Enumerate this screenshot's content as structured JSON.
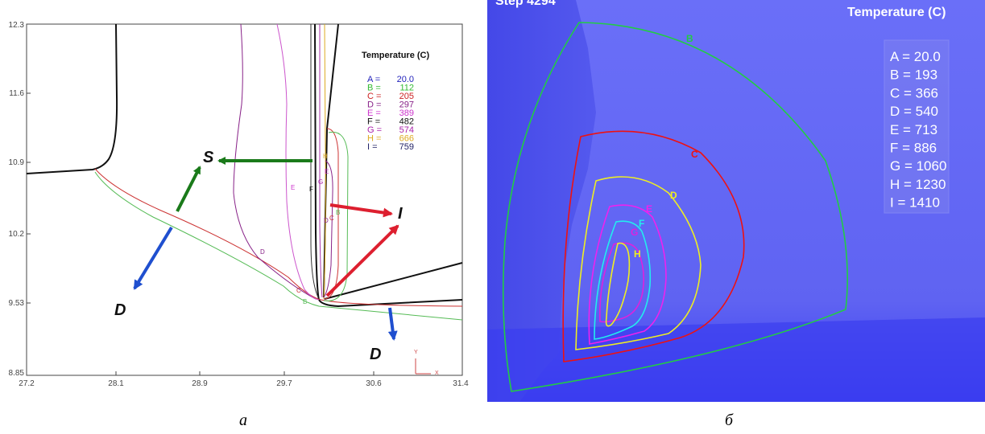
{
  "chart_data": [
    {
      "type": "line",
      "subtype": "contour",
      "caption": "а",
      "legend_title": "Temperature (C)",
      "x_ticks": [
        "27.2",
        "28.1",
        "28.9",
        "29.7",
        "30.6",
        "31.4"
      ],
      "y_ticks": [
        "12.3",
        "11.6",
        "10.9",
        "10.2",
        "9.53",
        "8.85"
      ],
      "xlim": [
        27.2,
        31.4
      ],
      "ylim": [
        8.85,
        12.3
      ],
      "axis_triad": {
        "y": "Y",
        "x": "X"
      },
      "legend": [
        {
          "label": "A",
          "value": "20.0",
          "color": "#2222bb"
        },
        {
          "label": "B",
          "value": "112",
          "color": "#33bb33"
        },
        {
          "label": "C",
          "value": "205",
          "color": "#cc2222"
        },
        {
          "label": "D",
          "value": "297",
          "color": "#882288"
        },
        {
          "label": "E",
          "value": "389",
          "color": "#cc33cc"
        },
        {
          "label": "F",
          "value": "482",
          "color": "#111111"
        },
        {
          "label": "G",
          "value": "574",
          "color": "#aa22aa"
        },
        {
          "label": "H",
          "value": "666",
          "color": "#ddaa22"
        },
        {
          "label": "I",
          "value": "759",
          "color": "#222266"
        }
      ],
      "arrows": [
        {
          "label": "S",
          "color": "#1a7a1a"
        },
        {
          "label": "I",
          "color": "#dd1f2f"
        },
        {
          "label": "D",
          "color": "#1f4fcf"
        }
      ]
    },
    {
      "type": "line",
      "subtype": "contour",
      "caption": "б",
      "legend_title": "Temperature (C)",
      "top_fragment": "Step 4294",
      "legend": [
        {
          "label": "A",
          "value": "20.0",
          "color": "#2222aa"
        },
        {
          "label": "B",
          "value": "193",
          "color": "#22cc44"
        },
        {
          "label": "C",
          "value": "366",
          "color": "#ee1111"
        },
        {
          "label": "D",
          "value": "540",
          "color": "#eeee22"
        },
        {
          "label": "E",
          "value": "713",
          "color": "#ee22ee"
        },
        {
          "label": "F",
          "value": "886",
          "color": "#22eeee"
        },
        {
          "label": "G",
          "value": "1060",
          "color": "#dd22dd"
        },
        {
          "label": "H",
          "value": "1230",
          "color": "#eeee22"
        },
        {
          "label": "I",
          "value": "1410",
          "color": "#ffffff"
        }
      ]
    }
  ]
}
